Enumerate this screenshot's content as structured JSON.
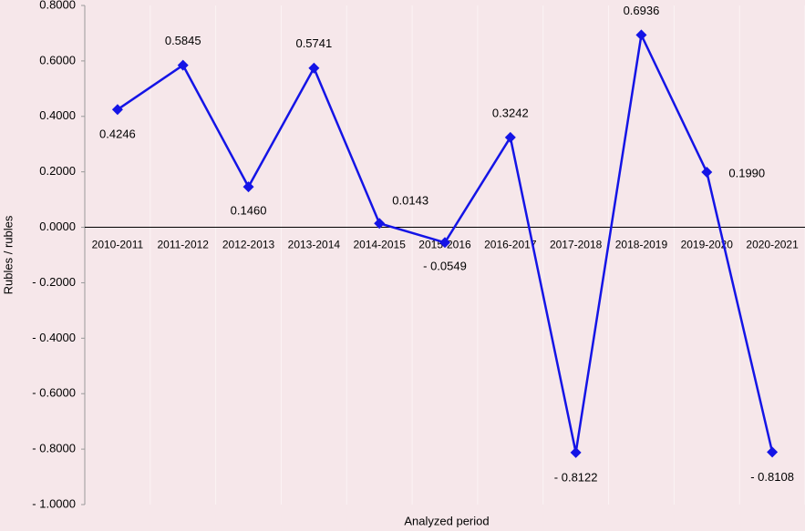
{
  "chart_data": {
    "type": "line",
    "x_label": "Analyzed period",
    "y_label": "Rubles / rubles",
    "categories": [
      "2010-2011",
      "2011-2012",
      "2012-2013",
      "2013-2014",
      "2014-2015",
      "2015-2016",
      "2016-2017",
      "2017-2018",
      "2018-2019",
      "2019-2020",
      "2020-2021"
    ],
    "series": [
      {
        "name": "Rubles / rubles",
        "color": "#1414e6",
        "values": [
          0.4246,
          0.5845,
          0.146,
          0.5741,
          0.0143,
          -0.0549,
          0.3242,
          -0.8122,
          0.6936,
          0.199,
          -0.8108
        ],
        "value_labels": [
          "0.4246",
          "0.5845",
          "0.1460",
          "0.5741",
          "0.0143",
          "- 0.0549",
          "0.3242",
          "- 0.8122",
          "0.6936",
          "0.1990",
          "- 0.8108"
        ]
      }
    ],
    "ylim": [
      -1,
      0.8
    ],
    "yticks": [
      {
        "value": 0.8,
        "label": "0.8000"
      },
      {
        "value": 0.6,
        "label": "0.6000"
      },
      {
        "value": 0.4,
        "label": "0.4000"
      },
      {
        "value": 0.2,
        "label": "0.2000"
      },
      {
        "value": 0,
        "label": "0.0000"
      },
      {
        "value": -0.2,
        "label": "- 0.2000"
      },
      {
        "value": -0.4,
        "label": "- 0.4000"
      },
      {
        "value": -0.6,
        "label": "- 0.6000"
      },
      {
        "value": -0.8,
        "label": "- 0.8000"
      },
      {
        "value": -1,
        "label": "- 1.0000"
      }
    ],
    "grid": true
  }
}
